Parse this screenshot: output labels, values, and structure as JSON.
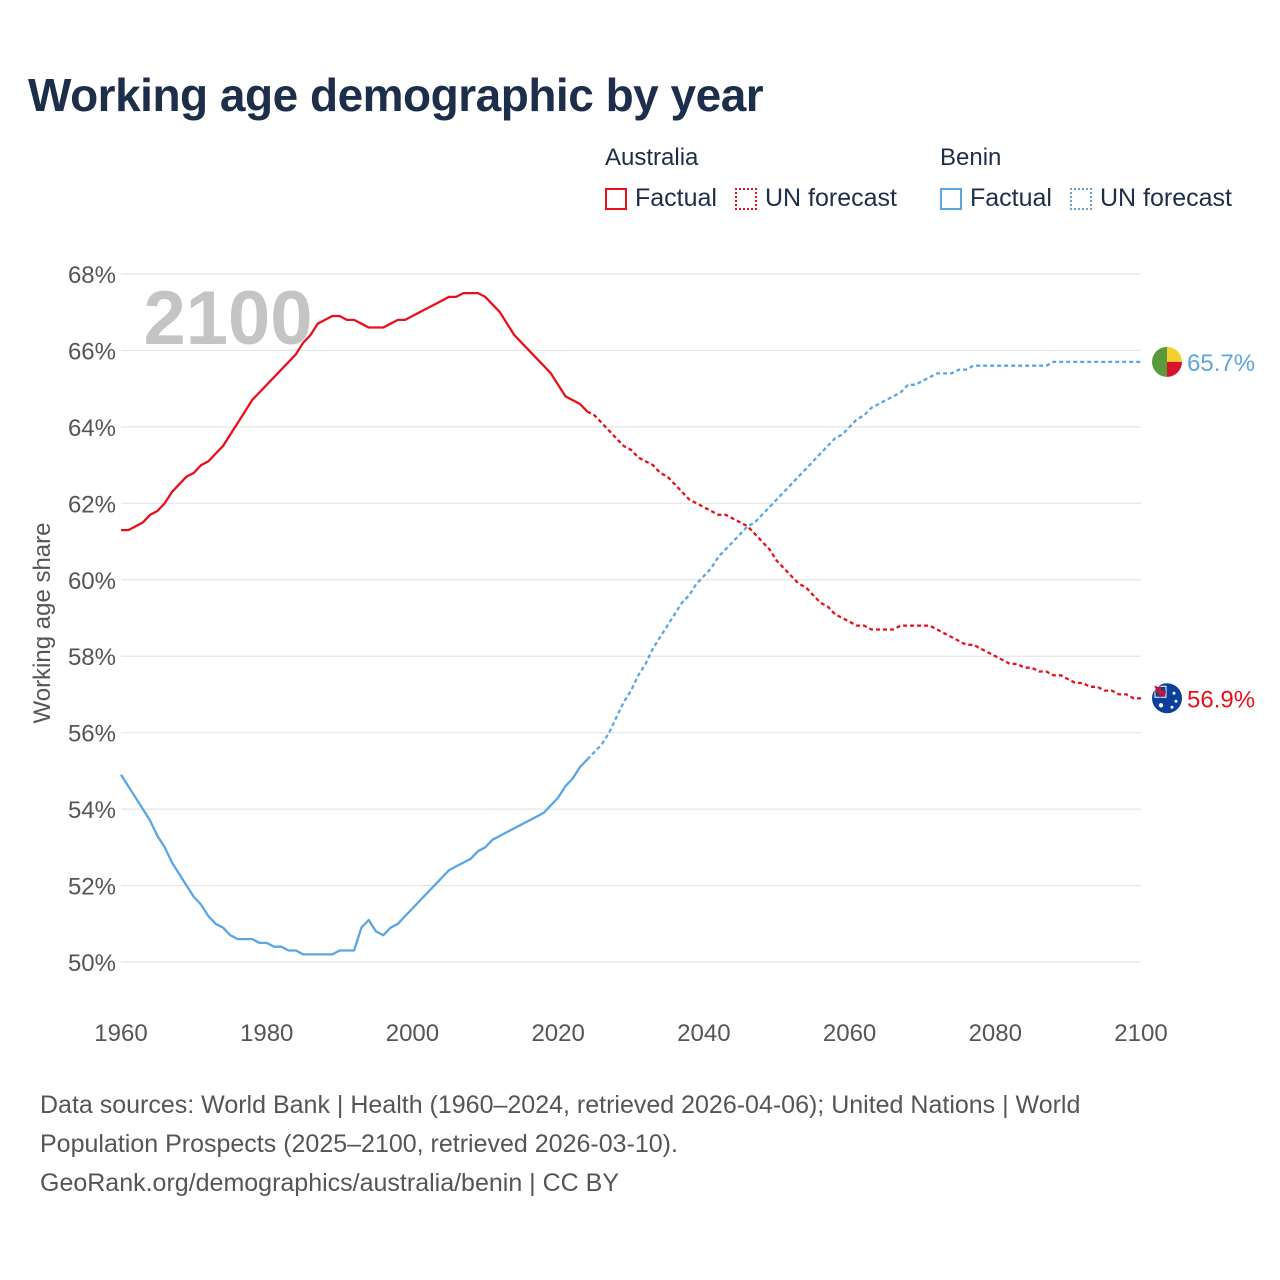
{
  "title": "Working age demographic by year",
  "legend": [
    {
      "group": "Australia",
      "factual_label": "Factual",
      "forecast_label": "UN forecast",
      "color": "#e8101a"
    },
    {
      "group": "Benin",
      "factual_label": "Factual",
      "forecast_label": "UN forecast",
      "color": "#5ba6e0"
    }
  ],
  "footer": {
    "line1": "Data sources: World Bank | Health (1960–2024, retrieved 2026-04-06); United Nations | World",
    "line2": "Population Prospects (2025–2100, retrieved 2026-03-10).",
    "line3": "GeoRank.org/demographics/australia/benin | CC BY"
  },
  "chart_data": {
    "type": "line",
    "title": "Working age demographic by year",
    "xlabel": "",
    "ylabel": "Working age share",
    "xlim": [
      1960,
      2100
    ],
    "ylim": [
      50,
      68
    ],
    "x_ticks": [
      1960,
      1980,
      2000,
      2020,
      2040,
      2060,
      2080,
      2100
    ],
    "y_ticks": [
      50,
      52,
      54,
      56,
      58,
      60,
      62,
      64,
      66,
      68
    ],
    "y_tick_suffix": "%",
    "grid": true,
    "year_label": "2100",
    "forecast_start": 2024,
    "series": [
      {
        "name": "Australia",
        "color": "#e8101a",
        "end_label": "56.9%",
        "points": [
          [
            1960,
            61.3
          ],
          [
            1961,
            61.3
          ],
          [
            1962,
            61.4
          ],
          [
            1963,
            61.5
          ],
          [
            1964,
            61.7
          ],
          [
            1965,
            61.8
          ],
          [
            1966,
            62.0
          ],
          [
            1967,
            62.3
          ],
          [
            1968,
            62.5
          ],
          [
            1969,
            62.7
          ],
          [
            1970,
            62.8
          ],
          [
            1971,
            63.0
          ],
          [
            1972,
            63.1
          ],
          [
            1973,
            63.3
          ],
          [
            1974,
            63.5
          ],
          [
            1975,
            63.8
          ],
          [
            1976,
            64.1
          ],
          [
            1977,
            64.4
          ],
          [
            1978,
            64.7
          ],
          [
            1979,
            64.9
          ],
          [
            1980,
            65.1
          ],
          [
            1981,
            65.3
          ],
          [
            1982,
            65.5
          ],
          [
            1983,
            65.7
          ],
          [
            1984,
            65.9
          ],
          [
            1985,
            66.2
          ],
          [
            1986,
            66.4
          ],
          [
            1987,
            66.7
          ],
          [
            1988,
            66.8
          ],
          [
            1989,
            66.9
          ],
          [
            1990,
            66.9
          ],
          [
            1991,
            66.8
          ],
          [
            1992,
            66.8
          ],
          [
            1993,
            66.7
          ],
          [
            1994,
            66.6
          ],
          [
            1995,
            66.6
          ],
          [
            1996,
            66.6
          ],
          [
            1997,
            66.7
          ],
          [
            1998,
            66.8
          ],
          [
            1999,
            66.8
          ],
          [
            2000,
            66.9
          ],
          [
            2001,
            67.0
          ],
          [
            2002,
            67.1
          ],
          [
            2003,
            67.2
          ],
          [
            2004,
            67.3
          ],
          [
            2005,
            67.4
          ],
          [
            2006,
            67.4
          ],
          [
            2007,
            67.5
          ],
          [
            2008,
            67.5
          ],
          [
            2009,
            67.5
          ],
          [
            2010,
            67.4
          ],
          [
            2011,
            67.2
          ],
          [
            2012,
            67.0
          ],
          [
            2013,
            66.7
          ],
          [
            2014,
            66.4
          ],
          [
            2015,
            66.2
          ],
          [
            2016,
            66.0
          ],
          [
            2017,
            65.8
          ],
          [
            2018,
            65.6
          ],
          [
            2019,
            65.4
          ],
          [
            2020,
            65.1
          ],
          [
            2021,
            64.8
          ],
          [
            2022,
            64.7
          ],
          [
            2023,
            64.6
          ],
          [
            2024,
            64.4
          ],
          [
            2025,
            64.3
          ],
          [
            2026,
            64.1
          ],
          [
            2027,
            63.9
          ],
          [
            2028,
            63.7
          ],
          [
            2029,
            63.5
          ],
          [
            2030,
            63.4
          ],
          [
            2031,
            63.2
          ],
          [
            2032,
            63.1
          ],
          [
            2033,
            63.0
          ],
          [
            2034,
            62.8
          ],
          [
            2035,
            62.7
          ],
          [
            2036,
            62.5
          ],
          [
            2037,
            62.3
          ],
          [
            2038,
            62.1
          ],
          [
            2039,
            62.0
          ],
          [
            2040,
            61.9
          ],
          [
            2041,
            61.8
          ],
          [
            2042,
            61.7
          ],
          [
            2043,
            61.7
          ],
          [
            2044,
            61.6
          ],
          [
            2045,
            61.5
          ],
          [
            2046,
            61.4
          ],
          [
            2047,
            61.2
          ],
          [
            2048,
            61.0
          ],
          [
            2049,
            60.8
          ],
          [
            2050,
            60.5
          ],
          [
            2051,
            60.3
          ],
          [
            2052,
            60.1
          ],
          [
            2053,
            59.9
          ],
          [
            2054,
            59.8
          ],
          [
            2055,
            59.6
          ],
          [
            2056,
            59.4
          ],
          [
            2057,
            59.3
          ],
          [
            2058,
            59.1
          ],
          [
            2059,
            59.0
          ],
          [
            2060,
            58.9
          ],
          [
            2061,
            58.8
          ],
          [
            2062,
            58.8
          ],
          [
            2063,
            58.7
          ],
          [
            2064,
            58.7
          ],
          [
            2065,
            58.7
          ],
          [
            2066,
            58.7
          ],
          [
            2067,
            58.8
          ],
          [
            2068,
            58.8
          ],
          [
            2069,
            58.8
          ],
          [
            2070,
            58.8
          ],
          [
            2071,
            58.8
          ],
          [
            2072,
            58.7
          ],
          [
            2073,
            58.6
          ],
          [
            2074,
            58.5
          ],
          [
            2075,
            58.4
          ],
          [
            2076,
            58.3
          ],
          [
            2077,
            58.3
          ],
          [
            2078,
            58.2
          ],
          [
            2079,
            58.1
          ],
          [
            2080,
            58.0
          ],
          [
            2081,
            57.9
          ],
          [
            2082,
            57.8
          ],
          [
            2083,
            57.8
          ],
          [
            2084,
            57.7
          ],
          [
            2085,
            57.7
          ],
          [
            2086,
            57.6
          ],
          [
            2087,
            57.6
          ],
          [
            2088,
            57.5
          ],
          [
            2089,
            57.5
          ],
          [
            2090,
            57.4
          ],
          [
            2091,
            57.3
          ],
          [
            2092,
            57.3
          ],
          [
            2093,
            57.2
          ],
          [
            2094,
            57.2
          ],
          [
            2095,
            57.1
          ],
          [
            2096,
            57.1
          ],
          [
            2097,
            57.0
          ],
          [
            2098,
            57.0
          ],
          [
            2099,
            56.9
          ],
          [
            2100,
            56.9
          ]
        ]
      },
      {
        "name": "Benin",
        "color": "#5ba6e0",
        "end_label": "65.7%",
        "points": [
          [
            1960,
            54.9
          ],
          [
            1961,
            54.6
          ],
          [
            1962,
            54.3
          ],
          [
            1963,
            54.0
          ],
          [
            1964,
            53.7
          ],
          [
            1965,
            53.3
          ],
          [
            1966,
            53.0
          ],
          [
            1967,
            52.6
          ],
          [
            1968,
            52.3
          ],
          [
            1969,
            52.0
          ],
          [
            1970,
            51.7
          ],
          [
            1971,
            51.5
          ],
          [
            1972,
            51.2
          ],
          [
            1973,
            51.0
          ],
          [
            1974,
            50.9
          ],
          [
            1975,
            50.7
          ],
          [
            1976,
            50.6
          ],
          [
            1977,
            50.6
          ],
          [
            1978,
            50.6
          ],
          [
            1979,
            50.5
          ],
          [
            1980,
            50.5
          ],
          [
            1981,
            50.4
          ],
          [
            1982,
            50.4
          ],
          [
            1983,
            50.3
          ],
          [
            1984,
            50.3
          ],
          [
            1985,
            50.2
          ],
          [
            1986,
            50.2
          ],
          [
            1987,
            50.2
          ],
          [
            1988,
            50.2
          ],
          [
            1989,
            50.2
          ],
          [
            1990,
            50.3
          ],
          [
            1991,
            50.3
          ],
          [
            1992,
            50.3
          ],
          [
            1993,
            50.9
          ],
          [
            1994,
            51.1
          ],
          [
            1995,
            50.8
          ],
          [
            1996,
            50.7
          ],
          [
            1997,
            50.9
          ],
          [
            1998,
            51.0
          ],
          [
            1999,
            51.2
          ],
          [
            2000,
            51.4
          ],
          [
            2001,
            51.6
          ],
          [
            2002,
            51.8
          ],
          [
            2003,
            52.0
          ],
          [
            2004,
            52.2
          ],
          [
            2005,
            52.4
          ],
          [
            2006,
            52.5
          ],
          [
            2007,
            52.6
          ],
          [
            2008,
            52.7
          ],
          [
            2009,
            52.9
          ],
          [
            2010,
            53.0
          ],
          [
            2011,
            53.2
          ],
          [
            2012,
            53.3
          ],
          [
            2013,
            53.4
          ],
          [
            2014,
            53.5
          ],
          [
            2015,
            53.6
          ],
          [
            2016,
            53.7
          ],
          [
            2017,
            53.8
          ],
          [
            2018,
            53.9
          ],
          [
            2019,
            54.1
          ],
          [
            2020,
            54.3
          ],
          [
            2021,
            54.6
          ],
          [
            2022,
            54.8
          ],
          [
            2023,
            55.1
          ],
          [
            2024,
            55.3
          ],
          [
            2025,
            55.5
          ],
          [
            2026,
            55.7
          ],
          [
            2027,
            56.0
          ],
          [
            2028,
            56.4
          ],
          [
            2029,
            56.8
          ],
          [
            2030,
            57.1
          ],
          [
            2031,
            57.5
          ],
          [
            2032,
            57.8
          ],
          [
            2033,
            58.2
          ],
          [
            2034,
            58.5
          ],
          [
            2035,
            58.8
          ],
          [
            2036,
            59.1
          ],
          [
            2037,
            59.4
          ],
          [
            2038,
            59.6
          ],
          [
            2039,
            59.9
          ],
          [
            2040,
            60.1
          ],
          [
            2041,
            60.3
          ],
          [
            2042,
            60.6
          ],
          [
            2043,
            60.8
          ],
          [
            2044,
            61.0
          ],
          [
            2045,
            61.2
          ],
          [
            2046,
            61.4
          ],
          [
            2047,
            61.5
          ],
          [
            2048,
            61.7
          ],
          [
            2049,
            61.9
          ],
          [
            2050,
            62.1
          ],
          [
            2051,
            62.3
          ],
          [
            2052,
            62.5
          ],
          [
            2053,
            62.7
          ],
          [
            2054,
            62.9
          ],
          [
            2055,
            63.1
          ],
          [
            2056,
            63.3
          ],
          [
            2057,
            63.5
          ],
          [
            2058,
            63.7
          ],
          [
            2059,
            63.8
          ],
          [
            2060,
            64.0
          ],
          [
            2061,
            64.2
          ],
          [
            2062,
            64.3
          ],
          [
            2063,
            64.5
          ],
          [
            2064,
            64.6
          ],
          [
            2065,
            64.7
          ],
          [
            2066,
            64.8
          ],
          [
            2067,
            64.9
          ],
          [
            2068,
            65.1
          ],
          [
            2069,
            65.1
          ],
          [
            2070,
            65.2
          ],
          [
            2071,
            65.3
          ],
          [
            2072,
            65.4
          ],
          [
            2073,
            65.4
          ],
          [
            2074,
            65.4
          ],
          [
            2075,
            65.5
          ],
          [
            2076,
            65.5
          ],
          [
            2077,
            65.6
          ],
          [
            2078,
            65.6
          ],
          [
            2079,
            65.6
          ],
          [
            2080,
            65.6
          ],
          [
            2081,
            65.6
          ],
          [
            2082,
            65.6
          ],
          [
            2083,
            65.6
          ],
          [
            2084,
            65.6
          ],
          [
            2085,
            65.6
          ],
          [
            2086,
            65.6
          ],
          [
            2087,
            65.6
          ],
          [
            2088,
            65.7
          ],
          [
            2089,
            65.7
          ],
          [
            2090,
            65.7
          ],
          [
            2091,
            65.7
          ],
          [
            2092,
            65.7
          ],
          [
            2093,
            65.7
          ],
          [
            2094,
            65.7
          ],
          [
            2095,
            65.7
          ],
          [
            2096,
            65.7
          ],
          [
            2097,
            65.7
          ],
          [
            2098,
            65.7
          ],
          [
            2099,
            65.7
          ],
          [
            2100,
            65.7
          ]
        ]
      }
    ]
  }
}
